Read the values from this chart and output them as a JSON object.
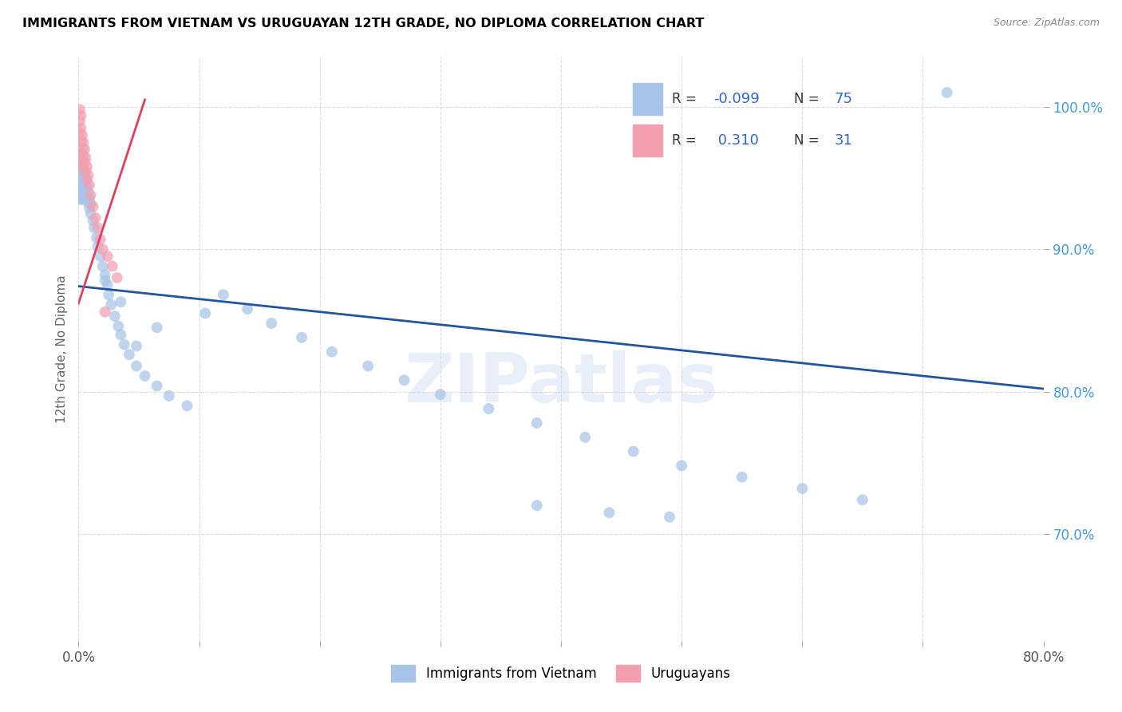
{
  "title": "IMMIGRANTS FROM VIETNAM VS URUGUAYAN 12TH GRADE, NO DIPLOMA CORRELATION CHART",
  "source": "Source: ZipAtlas.com",
  "ylabel": "12th Grade, No Diploma",
  "legend_label1": "Immigrants from Vietnam",
  "legend_label2": "Uruguayans",
  "r_blue": "-0.099",
  "n_blue": "75",
  "r_pink": "0.310",
  "n_pink": "31",
  "blue_color": "#a8c4e8",
  "pink_color": "#f2a0b0",
  "blue_line_color": "#2255a0",
  "pink_line_color": "#e04060",
  "watermark": "ZIPatlas",
  "xmin": 0.0,
  "xmax": 0.8,
  "ymin": 0.625,
  "ymax": 1.035,
  "blue_x": [
    0.001,
    0.001,
    0.001,
    0.001,
    0.001,
    0.002,
    0.002,
    0.002,
    0.002,
    0.002,
    0.003,
    0.003,
    0.003,
    0.003,
    0.004,
    0.004,
    0.004,
    0.005,
    0.005,
    0.005,
    0.006,
    0.006,
    0.007,
    0.007,
    0.008,
    0.008,
    0.009,
    0.009,
    0.01,
    0.01,
    0.012,
    0.013,
    0.015,
    0.016,
    0.018,
    0.02,
    0.022,
    0.024,
    0.025,
    0.027,
    0.03,
    0.033,
    0.035,
    0.038,
    0.042,
    0.048,
    0.055,
    0.065,
    0.075,
    0.09,
    0.105,
    0.12,
    0.14,
    0.16,
    0.185,
    0.21,
    0.24,
    0.27,
    0.3,
    0.34,
    0.38,
    0.42,
    0.46,
    0.5,
    0.55,
    0.6,
    0.65,
    0.38,
    0.44,
    0.49,
    0.035,
    0.065,
    0.022,
    0.048,
    0.72
  ],
  "blue_y": [
    0.958,
    0.952,
    0.945,
    0.94,
    0.935,
    0.963,
    0.955,
    0.948,
    0.942,
    0.938,
    0.96,
    0.95,
    0.942,
    0.935,
    0.955,
    0.946,
    0.938,
    0.952,
    0.943,
    0.936,
    0.948,
    0.94,
    0.944,
    0.936,
    0.94,
    0.933,
    0.936,
    0.929,
    0.932,
    0.925,
    0.92,
    0.915,
    0.908,
    0.902,
    0.895,
    0.888,
    0.882,
    0.875,
    0.868,
    0.861,
    0.853,
    0.846,
    0.84,
    0.833,
    0.826,
    0.818,
    0.811,
    0.804,
    0.797,
    0.79,
    0.855,
    0.868,
    0.858,
    0.848,
    0.838,
    0.828,
    0.818,
    0.808,
    0.798,
    0.788,
    0.778,
    0.768,
    0.758,
    0.748,
    0.74,
    0.732,
    0.724,
    0.72,
    0.715,
    0.712,
    0.863,
    0.845,
    0.878,
    0.832,
    1.01
  ],
  "pink_x": [
    0.001,
    0.001,
    0.001,
    0.002,
    0.002,
    0.002,
    0.002,
    0.003,
    0.003,
    0.003,
    0.004,
    0.004,
    0.004,
    0.005,
    0.005,
    0.006,
    0.006,
    0.007,
    0.007,
    0.008,
    0.009,
    0.01,
    0.012,
    0.014,
    0.016,
    0.018,
    0.02,
    0.024,
    0.028,
    0.032,
    0.022
  ],
  "pink_y": [
    0.998,
    0.99,
    0.982,
    0.994,
    0.985,
    0.976,
    0.967,
    0.98,
    0.971,
    0.962,
    0.975,
    0.966,
    0.957,
    0.97,
    0.961,
    0.964,
    0.955,
    0.958,
    0.949,
    0.952,
    0.945,
    0.938,
    0.93,
    0.922,
    0.915,
    0.907,
    0.9,
    0.895,
    0.888,
    0.88,
    0.856
  ],
  "blue_trend_x": [
    0.0,
    0.8
  ],
  "blue_trend_y": [
    0.874,
    0.802
  ],
  "pink_trend_x": [
    0.0,
    0.055
  ],
  "pink_trend_y": [
    0.862,
    1.005
  ]
}
